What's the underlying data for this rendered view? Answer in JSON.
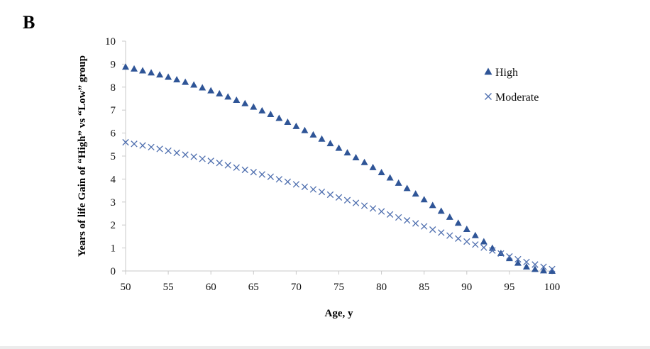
{
  "panel_label": "B",
  "colors": {
    "high": "#2F5597",
    "moderate": "#4F6FAF",
    "axis": "#c8c8c8"
  },
  "chart_data": {
    "type": "scatter",
    "title": "",
    "xlabel": "Age, y",
    "ylabel": "Years of life Gain of “High” vs “Low” group",
    "xlim": [
      50,
      100
    ],
    "ylim": [
      0,
      10
    ],
    "xticks": [
      50,
      55,
      60,
      65,
      70,
      75,
      80,
      85,
      90,
      95,
      100
    ],
    "yticks": [
      0,
      1,
      2,
      3,
      4,
      5,
      6,
      7,
      8,
      9,
      10
    ],
    "grid": false,
    "legend_position": "top-right",
    "x": [
      50,
      51,
      52,
      53,
      54,
      55,
      56,
      57,
      58,
      59,
      60,
      61,
      62,
      63,
      64,
      65,
      66,
      67,
      68,
      69,
      70,
      71,
      72,
      73,
      74,
      75,
      76,
      77,
      78,
      79,
      80,
      81,
      82,
      83,
      84,
      85,
      86,
      87,
      88,
      89,
      90,
      91,
      92,
      93,
      94,
      95,
      96,
      97,
      98,
      99,
      100
    ],
    "series": [
      {
        "name": "High",
        "marker": "triangle",
        "values": [
          8.88,
          8.8,
          8.72,
          8.63,
          8.54,
          8.44,
          8.33,
          8.22,
          8.1,
          7.98,
          7.85,
          7.72,
          7.58,
          7.44,
          7.29,
          7.14,
          6.98,
          6.82,
          6.65,
          6.48,
          6.3,
          6.12,
          5.93,
          5.75,
          5.55,
          5.35,
          5.15,
          4.94,
          4.73,
          4.51,
          4.29,
          4.06,
          3.83,
          3.6,
          3.36,
          3.11,
          2.86,
          2.61,
          2.35,
          2.09,
          1.82,
          1.55,
          1.28,
          1.0,
          0.77,
          0.55,
          0.35,
          0.19,
          0.08,
          0.02,
          0.0
        ]
      },
      {
        "name": "Moderate",
        "marker": "x",
        "values": [
          5.6,
          5.53,
          5.46,
          5.39,
          5.31,
          5.23,
          5.14,
          5.06,
          4.97,
          4.88,
          4.79,
          4.7,
          4.6,
          4.5,
          4.4,
          4.3,
          4.2,
          4.1,
          3.99,
          3.88,
          3.77,
          3.66,
          3.55,
          3.44,
          3.32,
          3.2,
          3.08,
          2.96,
          2.84,
          2.72,
          2.59,
          2.46,
          2.33,
          2.2,
          2.07,
          1.94,
          1.8,
          1.67,
          1.54,
          1.41,
          1.28,
          1.15,
          1.02,
          0.89,
          0.76,
          0.63,
          0.51,
          0.39,
          0.28,
          0.18,
          0.08
        ]
      }
    ]
  }
}
